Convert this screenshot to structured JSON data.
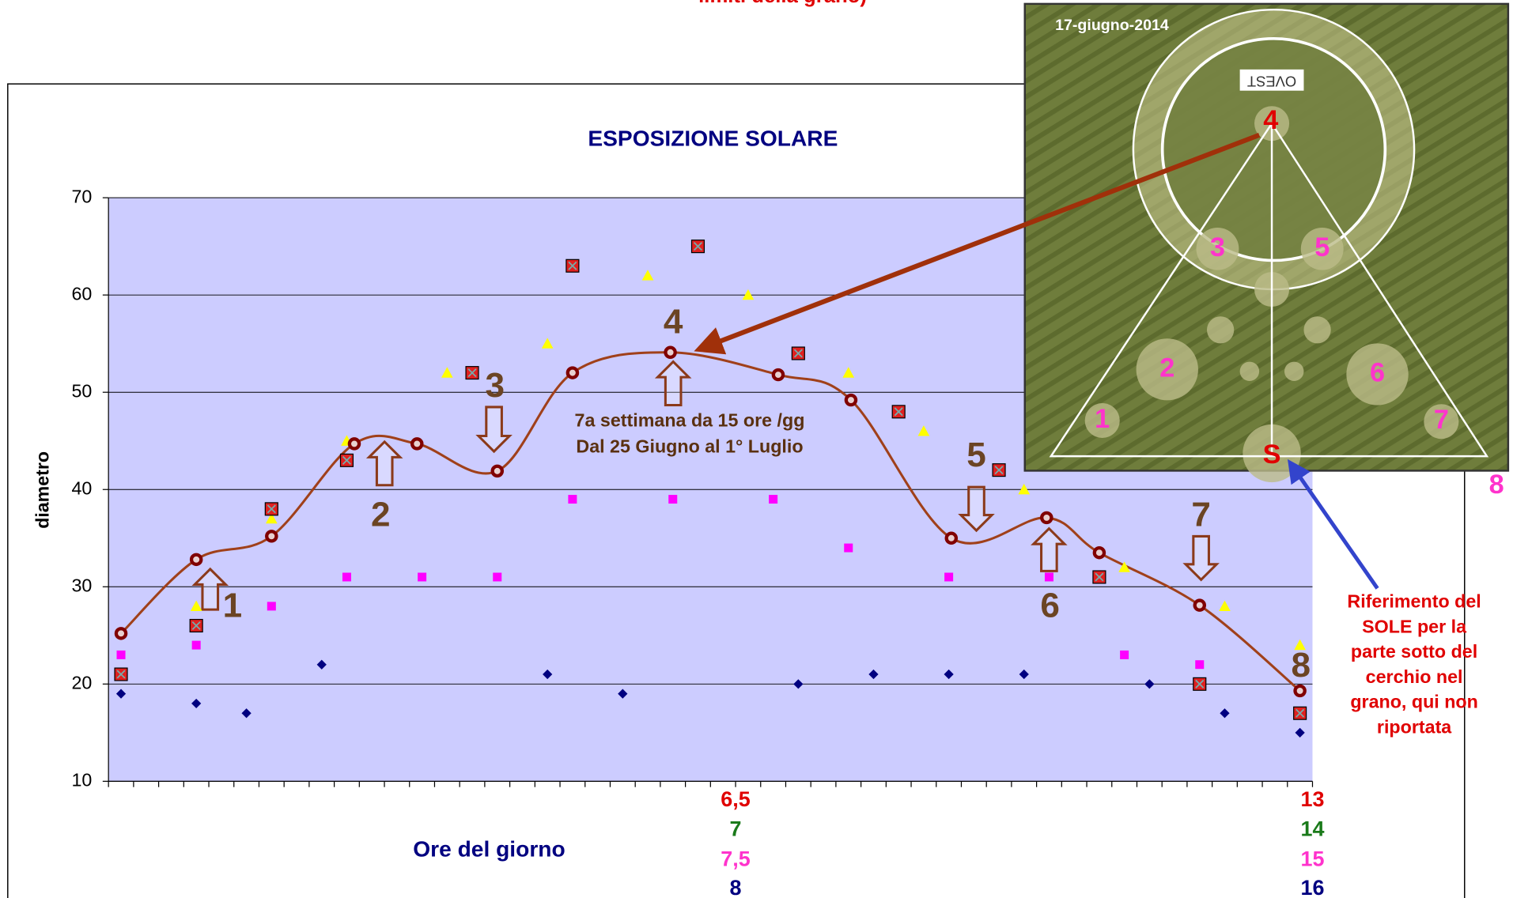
{
  "chart_data": {
    "type": "scatter",
    "header_fragment": "limiti della grano)",
    "title": "ESPOSIZIONE SOLARE",
    "y_label": "diametro",
    "x_label": "Ore del giorno",
    "ylim": [
      10,
      70
    ],
    "yticks": [
      10,
      20,
      30,
      40,
      50,
      60,
      70
    ],
    "grid": true,
    "xlim": [
      0,
      48
    ],
    "xticks": [
      0,
      1,
      2,
      3,
      4,
      5,
      6,
      7,
      8,
      9,
      10,
      11,
      12,
      13,
      14,
      15,
      16,
      17,
      18,
      19,
      20,
      21,
      22,
      23,
      24,
      25,
      26,
      27,
      28,
      29,
      30,
      31,
      32,
      33,
      34,
      35,
      36,
      37,
      38,
      39,
      40,
      41,
      42,
      43,
      44,
      45,
      46,
      47,
      48
    ],
    "x_label_rows": [
      {
        "color": "#e00000",
        "ticks": [
          {
            "value": 25,
            "label": "6,5"
          },
          {
            "value": 48,
            "label": "13"
          }
        ]
      },
      {
        "color": "#1a7a1a",
        "ticks": [
          {
            "value": 25,
            "label": "7"
          },
          {
            "value": 48,
            "label": "14"
          }
        ]
      },
      {
        "color": "#ff33cc",
        "ticks": [
          {
            "value": 25,
            "label": "7,5"
          },
          {
            "value": 48,
            "label": "15"
          }
        ]
      },
      {
        "color": "#000080",
        "ticks": [
          {
            "value": 25,
            "label": "8"
          },
          {
            "value": 48,
            "label": "16"
          }
        ]
      }
    ],
    "series": [
      {
        "marker": "diamond",
        "color": "#000080",
        "x": [
          0.5,
          3.5,
          5.5,
          8.5,
          17.5,
          20.5,
          27.5,
          30.5,
          33.5,
          36.5,
          41.5,
          44.5,
          47.5
        ],
        "values": [
          19,
          18,
          17,
          22,
          21,
          19,
          20,
          21,
          21,
          21,
          20,
          17,
          15
        ]
      },
      {
        "marker": "square",
        "color": "#ff00ff",
        "x": [
          0.5,
          3.5,
          6.5,
          9.5,
          12.5,
          15.5,
          18.5,
          22.5,
          26.5,
          29.5,
          33.5,
          37.5,
          40.5,
          43.5
        ],
        "values": [
          23,
          24,
          28,
          31,
          31,
          31,
          39,
          39,
          39,
          34,
          31,
          31,
          23,
          22
        ]
      },
      {
        "marker": "triangle",
        "color": "#ffff00",
        "x": [
          0.5,
          3.5,
          6.5,
          9.5,
          13.5,
          17.5,
          21.5,
          25.5,
          29.5,
          32.5,
          36.5,
          40.5,
          44.5,
          47.5
        ],
        "values": [
          21,
          28,
          37,
          45,
          52,
          55,
          62,
          60,
          52,
          46,
          40,
          32,
          28,
          24
        ]
      },
      {
        "marker": "crossbox",
        "color": "#e02020",
        "x": [
          0.5,
          3.5,
          6.5,
          9.5,
          14.5,
          18.5,
          23.5,
          27.5,
          31.5,
          35.5,
          39.5,
          43.5,
          47.5
        ],
        "values": [
          21,
          26,
          38,
          43,
          52,
          63,
          65,
          54,
          48,
          42,
          31,
          20,
          17
        ]
      },
      {
        "marker": "ring",
        "color": "#800000",
        "smooth_line": true,
        "line_color": "#a0401a",
        "x": [
          0.5,
          3.5,
          6.5,
          9.8,
          12.3,
          15.5,
          18.5,
          22.4,
          26.7,
          29.6,
          33.6,
          37.4,
          39.5,
          43.5,
          47.5
        ],
        "values": [
          25.2,
          32.8,
          35.2,
          44.7,
          44.7,
          41.9,
          52,
          54.1,
          51.8,
          49.2,
          35,
          37.1,
          33.5,
          28.1,
          19.3
        ]
      }
    ],
    "step_labels": [
      "1",
      "2",
      "3",
      "4",
      "5",
      "6",
      "7",
      "8"
    ],
    "annotations": [
      "7a settimana da 15 ore /gg",
      "Dal 25 Giugno al 1° Luglio"
    ],
    "photo": {
      "date": "17-giugno-2014",
      "mirror_label": "OVEST",
      "labels": [
        "1",
        "2",
        "3",
        "4",
        "5",
        "6",
        "7",
        "S"
      ],
      "outside_label": "8"
    },
    "sun_note": [
      "Riferimento del",
      "SOLE per la",
      "parte sotto del",
      "cerchio nel",
      "grano, qui non",
      "riportata"
    ]
  }
}
